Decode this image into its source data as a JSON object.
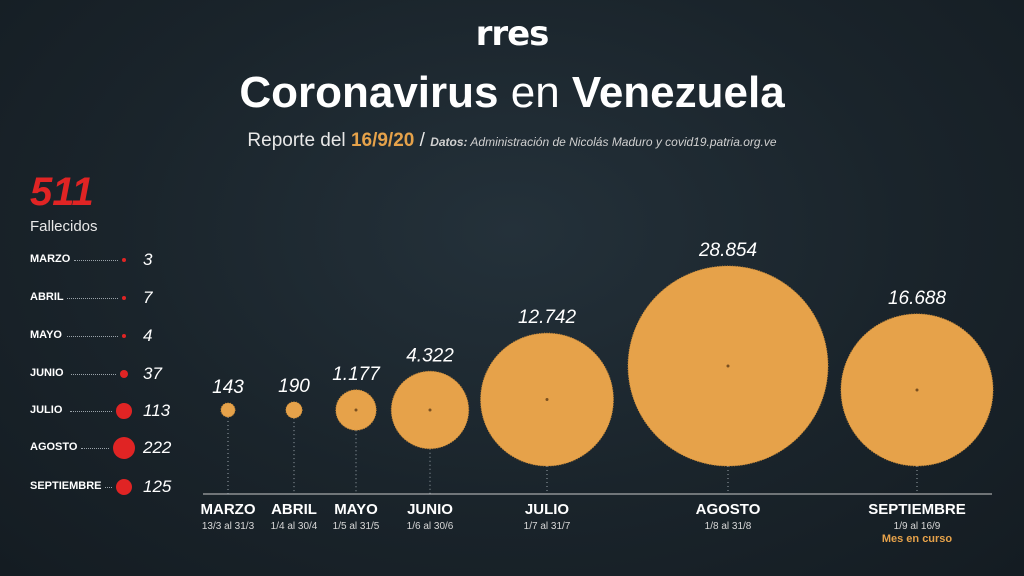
{
  "logo": "rres",
  "header": {
    "title_a": "Coronavirus",
    "title_b": "en",
    "title_c": "Venezuela",
    "report_label": "Reporte del",
    "report_date": "16/9/20",
    "separator": "/",
    "source_label": "Datos:",
    "source_text": "Administración de Nicolás Maduro y covid19.patria.org.ve"
  },
  "deaths": {
    "total": "511",
    "label": "Fallecidos",
    "color": "#e02424",
    "rows": [
      {
        "month": "MARZO",
        "value": "3"
      },
      {
        "month": "ABRIL",
        "value": "7"
      },
      {
        "month": "MAYO",
        "value": "4"
      },
      {
        "month": "JUNIO",
        "value": "37"
      },
      {
        "month": "JULIO",
        "value": "113"
      },
      {
        "month": "AGOSTO",
        "value": "222"
      },
      {
        "month": "SEPTIEMBRE",
        "value": "125"
      }
    ]
  },
  "chart_data": {
    "type": "bubble",
    "bubble_color": "#e6a24a",
    "categories": [
      "MARZO",
      "ABRIL",
      "MAYO",
      "JUNIO",
      "JULIO",
      "AGOSTO",
      "SEPTIEMBRE"
    ],
    "values": [
      143,
      190,
      1177,
      4322,
      12742,
      28854,
      16688
    ],
    "value_labels": [
      "143",
      "190",
      "1.177",
      "4.322",
      "12.742",
      "28.854",
      "16.688"
    ],
    "date_ranges": [
      "13/3 al 31/3",
      "1/4 al 30/4",
      "1/5 al 31/5",
      "1/6 al 30/6",
      "1/7 al 31/7",
      "1/8 al 31/8",
      "1/9 al 16/9"
    ],
    "note": {
      "category": "SEPTIEMBRE",
      "text": "Mes en curso",
      "color": "#e6a24a"
    }
  }
}
